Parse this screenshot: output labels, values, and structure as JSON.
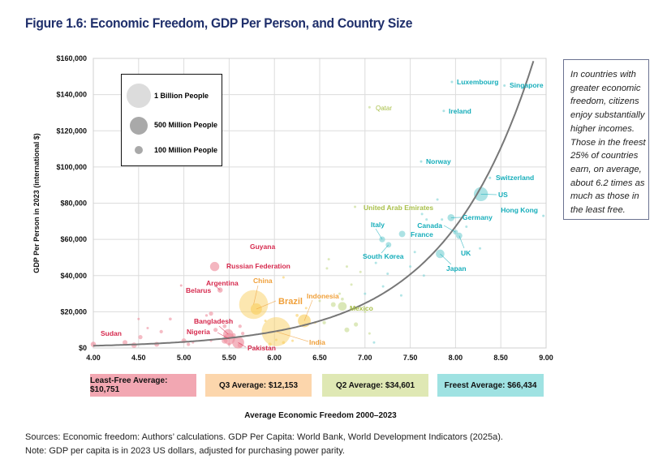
{
  "title": "Figure 1.6: Economic Freedom, GDP Per Person, and Country Size",
  "note": "In countries with greater economic freedom, citizens enjoy substantially higher incomes. Those in the freest 25% of countries earn, on average, about 6.2 times as much as those in the least free.",
  "averages": [
    {
      "label": "Least-Free Average: $10,751",
      "color": "#f2a7b2"
    },
    {
      "label": "Q3 Average: $12,153",
      "color": "#fcd6ac"
    },
    {
      "label": "Q2 Average: $34,601",
      "color": "#dfe8b4"
    },
    {
      "label": "Freest Average: $66,434",
      "color": "#9fe2e2"
    }
  ],
  "sources": [
    "Sources: Economic freedom: Authors’ calculations. GDP Per Capita: World Bank, World Development Indicators (2025a).",
    "Note: GDP per capita is in 2023 US dollars, adjusted for purchasing power parity."
  ],
  "chart_data": {
    "type": "scatter",
    "title": "Figure 1.6: Economic Freedom, GDP Per Person, and Country Size",
    "xlabel": "Average Economic Freedom 2000–2023",
    "ylabel": "GDP Per Person in 2023 (international $)",
    "xlim": [
      4,
      9
    ],
    "ylim": [
      0,
      160000
    ],
    "xticks": [
      "4.00",
      "4.50",
      "5.00",
      "5.50",
      "6.00",
      "6.50",
      "7.00",
      "7.50",
      "8.00",
      "8.50",
      "9.00"
    ],
    "yticks": [
      "$0",
      "$20,000",
      "$40,000",
      "$60,000",
      "$80,000",
      "$100,000",
      "$120,000",
      "$140,000",
      "$160,000"
    ],
    "grid": true,
    "size_legend": [
      {
        "label": "1 Billion People",
        "population_millions": 1000
      },
      {
        "label": "500 Million People",
        "population_millions": 500
      },
      {
        "label": "100 Million People",
        "population_millions": 100
      }
    ],
    "legend_position": "top-left",
    "quartile_colors": {
      "least_free": {
        "dot": "#ee8f9e",
        "text": "#d62a4e"
      },
      "q3": {
        "dot": "#f9cf62",
        "text": "#f0a03a"
      },
      "q2": {
        "dot": "#c6da90",
        "text": "#a9c04a"
      },
      "freest": {
        "dot": "#7fd3d6",
        "text": "#17aebb"
      }
    },
    "trendline": {
      "type": "exponential",
      "a": 22.5,
      "b": 1.0,
      "color": "#777777"
    },
    "labeled_points": [
      {
        "name": "Luxembourg",
        "x": 7.96,
        "y": 147000,
        "pop": 1,
        "q": "freest"
      },
      {
        "name": "Singapore",
        "x": 8.54,
        "y": 145000,
        "pop": 6,
        "q": "freest"
      },
      {
        "name": "Qatar",
        "x": 7.05,
        "y": 133000,
        "pop": 3,
        "q": "q2"
      },
      {
        "name": "Ireland",
        "x": 7.87,
        "y": 131000,
        "pop": 5,
        "q": "freest"
      },
      {
        "name": "Norway",
        "x": 7.62,
        "y": 103000,
        "pop": 5,
        "q": "freest"
      },
      {
        "name": "Switzerland",
        "x": 8.38,
        "y": 94000,
        "pop": 9,
        "q": "freest"
      },
      {
        "name": "US",
        "x": 8.28,
        "y": 85000,
        "pop": 335,
        "q": "freest"
      },
      {
        "name": "Hong Kong",
        "x": 8.97,
        "y": 73000,
        "pop": 7,
        "q": "freest"
      },
      {
        "name": "United Arab Emirates",
        "x": 6.89,
        "y": 78000,
        "pop": 9,
        "q": "q2"
      },
      {
        "name": "Germany",
        "x": 7.95,
        "y": 72000,
        "pop": 84,
        "q": "freest"
      },
      {
        "name": "Canada",
        "x": 8.0,
        "y": 64000,
        "pop": 40,
        "q": "freest"
      },
      {
        "name": "UK",
        "x": 8.04,
        "y": 62000,
        "pop": 68,
        "q": "freest"
      },
      {
        "name": "France",
        "x": 7.41,
        "y": 63000,
        "pop": 68,
        "q": "freest"
      },
      {
        "name": "Italy",
        "x": 7.19,
        "y": 60000,
        "pop": 59,
        "q": "freest"
      },
      {
        "name": "South Korea",
        "x": 7.26,
        "y": 57000,
        "pop": 52,
        "q": "freest"
      },
      {
        "name": "Japan",
        "x": 7.83,
        "y": 52000,
        "pop": 125,
        "q": "freest"
      },
      {
        "name": "Guyana",
        "x": 5.45,
        "y": 55000,
        "pop": 0.8,
        "q": "least_free"
      },
      {
        "name": "Russian Federation",
        "x": 5.34,
        "y": 45000,
        "pop": 144,
        "q": "least_free"
      },
      {
        "name": "Argentina",
        "x": 5.4,
        "y": 32000,
        "pop": 46,
        "q": "least_free"
      },
      {
        "name": "Belarus",
        "x": 4.97,
        "y": 34500,
        "pop": 9,
        "q": "least_free"
      },
      {
        "name": "China",
        "x": 5.77,
        "y": 24000,
        "pop": 1410,
        "q": "q3"
      },
      {
        "name": "Brazil",
        "x": 5.8,
        "y": 21500,
        "pop": 216,
        "q": "q3"
      },
      {
        "name": "India",
        "x": 6.02,
        "y": 9000,
        "pop": 1430,
        "q": "q3"
      },
      {
        "name": "Indonesia",
        "x": 6.33,
        "y": 15000,
        "pop": 278,
        "q": "q3"
      },
      {
        "name": "Mexico",
        "x": 6.75,
        "y": 23000,
        "pop": 128,
        "q": "q2"
      },
      {
        "name": "Bangladesh",
        "x": 5.49,
        "y": 7600,
        "pop": 173,
        "q": "least_free"
      },
      {
        "name": "Nigeria",
        "x": 5.5,
        "y": 5000,
        "pop": 224,
        "q": "least_free"
      },
      {
        "name": "Pakistan",
        "x": 5.6,
        "y": 3000,
        "pop": 240,
        "q": "least_free"
      },
      {
        "name": "Sudan",
        "x": 4.0,
        "y": 2000,
        "pop": 48,
        "q": "least_free"
      }
    ],
    "other_points": [
      [
        4.35,
        3000,
        40,
        "least_free"
      ],
      [
        4.52,
        6000,
        30,
        "least_free"
      ],
      [
        4.45,
        1500,
        50,
        "least_free"
      ],
      [
        4.7,
        2000,
        40,
        "least_free"
      ],
      [
        4.75,
        9000,
        20,
        "least_free"
      ],
      [
        4.85,
        16000,
        15,
        "least_free"
      ],
      [
        4.5,
        16000,
        10,
        "least_free"
      ],
      [
        4.6,
        11000,
        10,
        "least_free"
      ],
      [
        5.0,
        4000,
        40,
        "least_free"
      ],
      [
        5.05,
        2000,
        20,
        "least_free"
      ],
      [
        5.35,
        10000,
        30,
        "least_free"
      ],
      [
        5.45,
        12000,
        25,
        "least_free"
      ],
      [
        5.62,
        12000,
        20,
        "least_free"
      ],
      [
        5.65,
        8000,
        20,
        "least_free"
      ],
      [
        5.55,
        7000,
        30,
        "least_free"
      ],
      [
        5.3,
        19000,
        30,
        "least_free"
      ],
      [
        5.3,
        4000,
        10,
        "least_free"
      ],
      [
        5.1,
        3000,
        10,
        "least_free"
      ],
      [
        5.15,
        15000,
        5,
        "least_free"
      ],
      [
        5.45,
        4000,
        60,
        "least_free"
      ],
      [
        5.5,
        2000,
        15,
        "least_free"
      ],
      [
        5.62,
        1500,
        40,
        "least_free"
      ],
      [
        5.25,
        18000,
        12,
        "least_free"
      ],
      [
        5.95,
        2000,
        20,
        "q3"
      ],
      [
        6.1,
        3000,
        15,
        "q3"
      ],
      [
        6.2,
        4000,
        10,
        "q3"
      ],
      [
        6.25,
        18000,
        15,
        "q3"
      ],
      [
        6.35,
        22000,
        10,
        "q3"
      ],
      [
        6.45,
        14000,
        8,
        "q3"
      ],
      [
        6.02,
        4500,
        5,
        "q3"
      ],
      [
        6.1,
        39000,
        10,
        "q3"
      ],
      [
        5.9,
        15000,
        5,
        "q3"
      ],
      [
        6.55,
        14000,
        20,
        "q2"
      ],
      [
        6.65,
        24000,
        40,
        "q2"
      ],
      [
        6.8,
        10000,
        40,
        "q2"
      ],
      [
        6.9,
        13000,
        30,
        "q2"
      ],
      [
        6.58,
        44000,
        6,
        "q2"
      ],
      [
        6.75,
        27000,
        15,
        "q2"
      ],
      [
        6.85,
        35000,
        8,
        "q2"
      ],
      [
        6.95,
        42000,
        5,
        "q2"
      ],
      [
        6.6,
        49000,
        4,
        "q2"
      ],
      [
        6.5,
        26000,
        4,
        "q2"
      ],
      [
        7.0,
        20000,
        5,
        "q2"
      ],
      [
        6.72,
        30000,
        3,
        "q2"
      ],
      [
        6.8,
        45000,
        3,
        "q2"
      ],
      [
        7.05,
        8000,
        5,
        "q2"
      ],
      [
        6.9,
        22000,
        3,
        "q2"
      ],
      [
        7.0,
        30000,
        4,
        "freest"
      ],
      [
        7.2,
        34000,
        3,
        "freest"
      ],
      [
        7.1,
        3000,
        8,
        "freest"
      ],
      [
        7.12,
        47000,
        3,
        "freest"
      ],
      [
        7.3,
        51000,
        5,
        "freest"
      ],
      [
        7.55,
        53000,
        8,
        "freest"
      ],
      [
        7.5,
        45000,
        3,
        "freest"
      ],
      [
        7.65,
        40000,
        3,
        "freest"
      ],
      [
        7.4,
        29000,
        3,
        "freest"
      ],
      [
        7.25,
        41000,
        2,
        "freest"
      ],
      [
        7.8,
        82000,
        5,
        "freest"
      ],
      [
        7.85,
        71000,
        4,
        "freest"
      ],
      [
        7.63,
        74000,
        3,
        "freest"
      ],
      [
        7.68,
        71000,
        3,
        "freest"
      ],
      [
        8.12,
        67000,
        5,
        "freest"
      ],
      [
        8.27,
        55000,
        2,
        "freest"
      ]
    ]
  }
}
